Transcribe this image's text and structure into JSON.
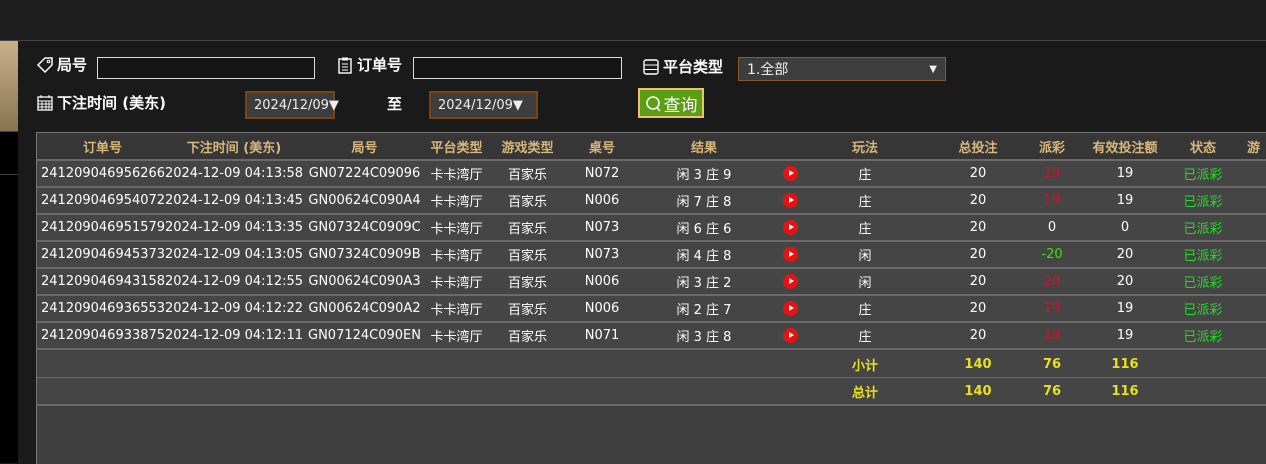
{
  "filters": {
    "round_label": "局号",
    "round_value": "",
    "order_label": "订单号",
    "order_value": "",
    "platform_label": "平台类型",
    "platform_value": "1.全部",
    "time_label": "下注时间 (美东)",
    "date_from": "2024/12/09▼",
    "to_label": "至",
    "date_to": "2024/12/09▼",
    "query_label": "查询"
  },
  "table": {
    "headers": [
      "订单号",
      "下注时间 (美东)",
      "局号",
      "平台类型",
      "游戏类型",
      "桌号",
      "结果",
      "",
      "玩法",
      "总投注",
      "派彩",
      "有效投注额",
      "状态",
      "游"
    ],
    "rows": [
      {
        "order": "241209046956266",
        "time": "2024-12-09 04:13:58",
        "round": "GN07224C09096",
        "platform": "卡卡湾厅",
        "game": "百家乐",
        "table": "N072",
        "result": "闲 3 庄 9",
        "play": "庄",
        "bet": "20",
        "payout": "19",
        "payout_color": "#d0102a",
        "valid": "19",
        "status": "已派彩"
      },
      {
        "order": "241209046954072",
        "time": "2024-12-09 04:13:45",
        "round": "GN00624C090A4",
        "platform": "卡卡湾厅",
        "game": "百家乐",
        "table": "N006",
        "result": "闲 7 庄 8",
        "play": "庄",
        "bet": "20",
        "payout": "19",
        "payout_color": "#d0102a",
        "valid": "19",
        "status": "已派彩"
      },
      {
        "order": "241209046951579",
        "time": "2024-12-09 04:13:35",
        "round": "GN07324C0909C",
        "platform": "卡卡湾厅",
        "game": "百家乐",
        "table": "N073",
        "result": "闲 6 庄 6",
        "play": "庄",
        "bet": "20",
        "payout": "0",
        "payout_color": "#ffffff",
        "valid": "0",
        "status": "已派彩"
      },
      {
        "order": "241209046945373",
        "time": "2024-12-09 04:13:05",
        "round": "GN07324C0909B",
        "platform": "卡卡湾厅",
        "game": "百家乐",
        "table": "N073",
        "result": "闲 4 庄 8",
        "play": "闲",
        "bet": "20",
        "payout": "-20",
        "payout_color": "#44dd10",
        "valid": "20",
        "status": "已派彩"
      },
      {
        "order": "241209046943158",
        "time": "2024-12-09 04:12:55",
        "round": "GN00624C090A3",
        "platform": "卡卡湾厅",
        "game": "百家乐",
        "table": "N006",
        "result": "闲 3 庄 2",
        "play": "闲",
        "bet": "20",
        "payout": "20",
        "payout_color": "#d0102a",
        "valid": "20",
        "status": "已派彩"
      },
      {
        "order": "241209046936553",
        "time": "2024-12-09 04:12:22",
        "round": "GN00624C090A2",
        "platform": "卡卡湾厅",
        "game": "百家乐",
        "table": "N006",
        "result": "闲 2 庄 7",
        "play": "庄",
        "bet": "20",
        "payout": "19",
        "payout_color": "#d0102a",
        "valid": "19",
        "status": "已派彩"
      },
      {
        "order": "241209046933875",
        "time": "2024-12-09 04:12:11",
        "round": "GN07124C090EN",
        "platform": "卡卡湾厅",
        "game": "百家乐",
        "table": "N071",
        "result": "闲 3 庄 8",
        "play": "庄",
        "bet": "20",
        "payout": "19",
        "payout_color": "#d0102a",
        "valid": "19",
        "status": "已派彩"
      }
    ],
    "subtotal": {
      "label": "小计",
      "bet": "140",
      "payout": "76",
      "valid": "116"
    },
    "total": {
      "label": "总计",
      "bet": "140",
      "payout": "76",
      "valid": "116"
    }
  },
  "colors": {
    "header_text": "#d7b77a",
    "status": "#22dd22",
    "sum": "#e8e020",
    "query_bg": "#5a9e14"
  }
}
